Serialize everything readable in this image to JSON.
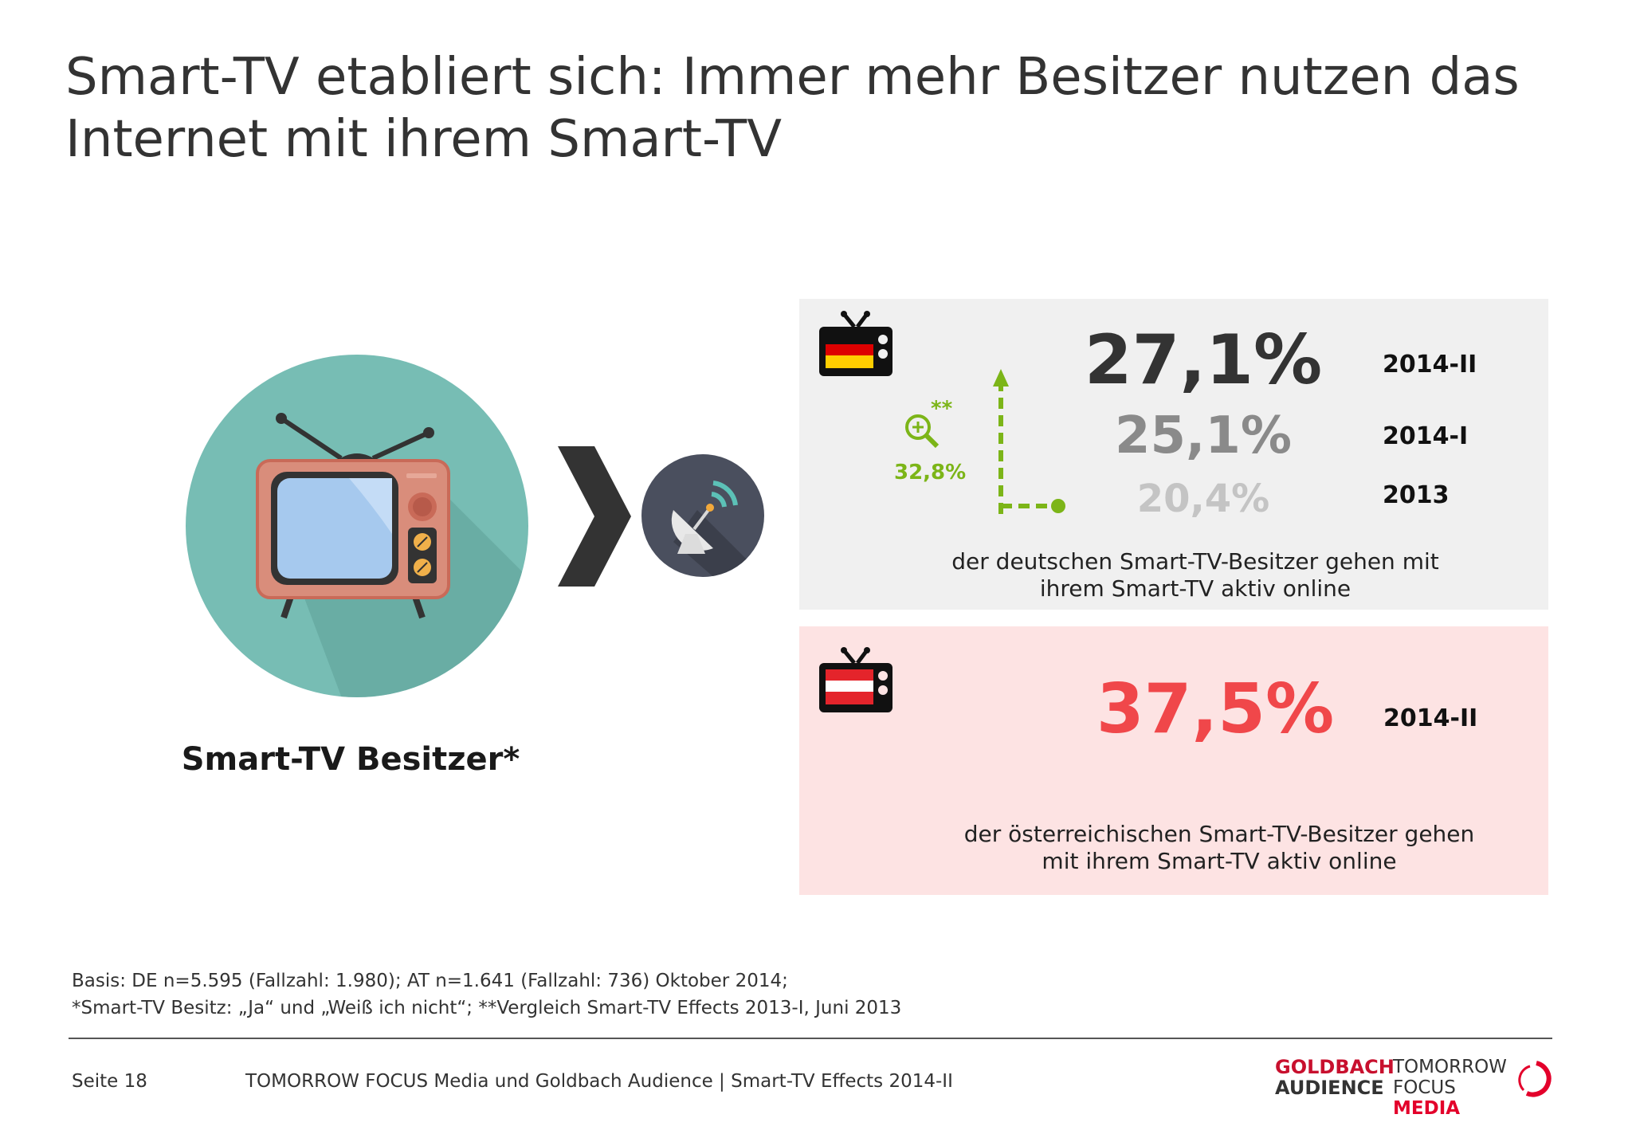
{
  "title": "Smart-TV etabliert sich: Immer mehr Besitzer nutzen das Internet mit ihrem Smart-TV",
  "owner_label": "Smart-TV Besitzer*",
  "germany": {
    "values": [
      {
        "value": "27,1%",
        "period": "2014-II",
        "color": "#333333"
      },
      {
        "value": "25,1%",
        "period": "2014-I",
        "color": "#8a8a8a"
      },
      {
        "value": "20,4%",
        "period": "2013",
        "color": "#c4c4c4"
      }
    ],
    "comparison_marker": "**",
    "comparison_value": "32,8%",
    "description_line1": "der deutschen Smart-TV-Besitzer gehen mit",
    "description_line2": "ihrem Smart-TV aktiv online"
  },
  "austria": {
    "value": "37,5%",
    "period": "2014-II",
    "description_line1": "der österreichischen Smart-TV-Besitzer gehen",
    "description_line2": "mit ihrem Smart-TV aktiv online"
  },
  "footnote_line1": "Basis: DE n=5.595 (Fallzahl: 1.980); AT n=1.641 (Fallzahl: 736) Oktober 2014;",
  "footnote_line2": "*Smart-TV Besitz: „Ja“ und „Weiß ich nicht“; **Vergleich Smart-TV Effects 2013-I, Juni 2013",
  "footer": {
    "page": "Seite 18",
    "source": "TOMORROW FOCUS Media und Goldbach Audience | Smart-TV Effects 2014-II",
    "logo_goldbach_line1": "GOLDBACH",
    "logo_goldbach_line2": "AUDIENCE",
    "logo_tf_line1": "TOMORROW",
    "logo_tf_line2a": "FOCUS ",
    "logo_tf_line2b": "MEDIA"
  },
  "colors": {
    "accent_red": "#f0474a",
    "accent_green": "#7cb518",
    "panel_de_bg": "#f0f0f0",
    "panel_at_bg": "#fde3e3",
    "tv_circle": "#77bdb4"
  },
  "icons": [
    "tv-illustration-icon",
    "chevron-right-icon",
    "satellite-dish-icon",
    "tv-flag-germany-icon",
    "tv-flag-austria-icon",
    "magnifier-plus-icon"
  ]
}
